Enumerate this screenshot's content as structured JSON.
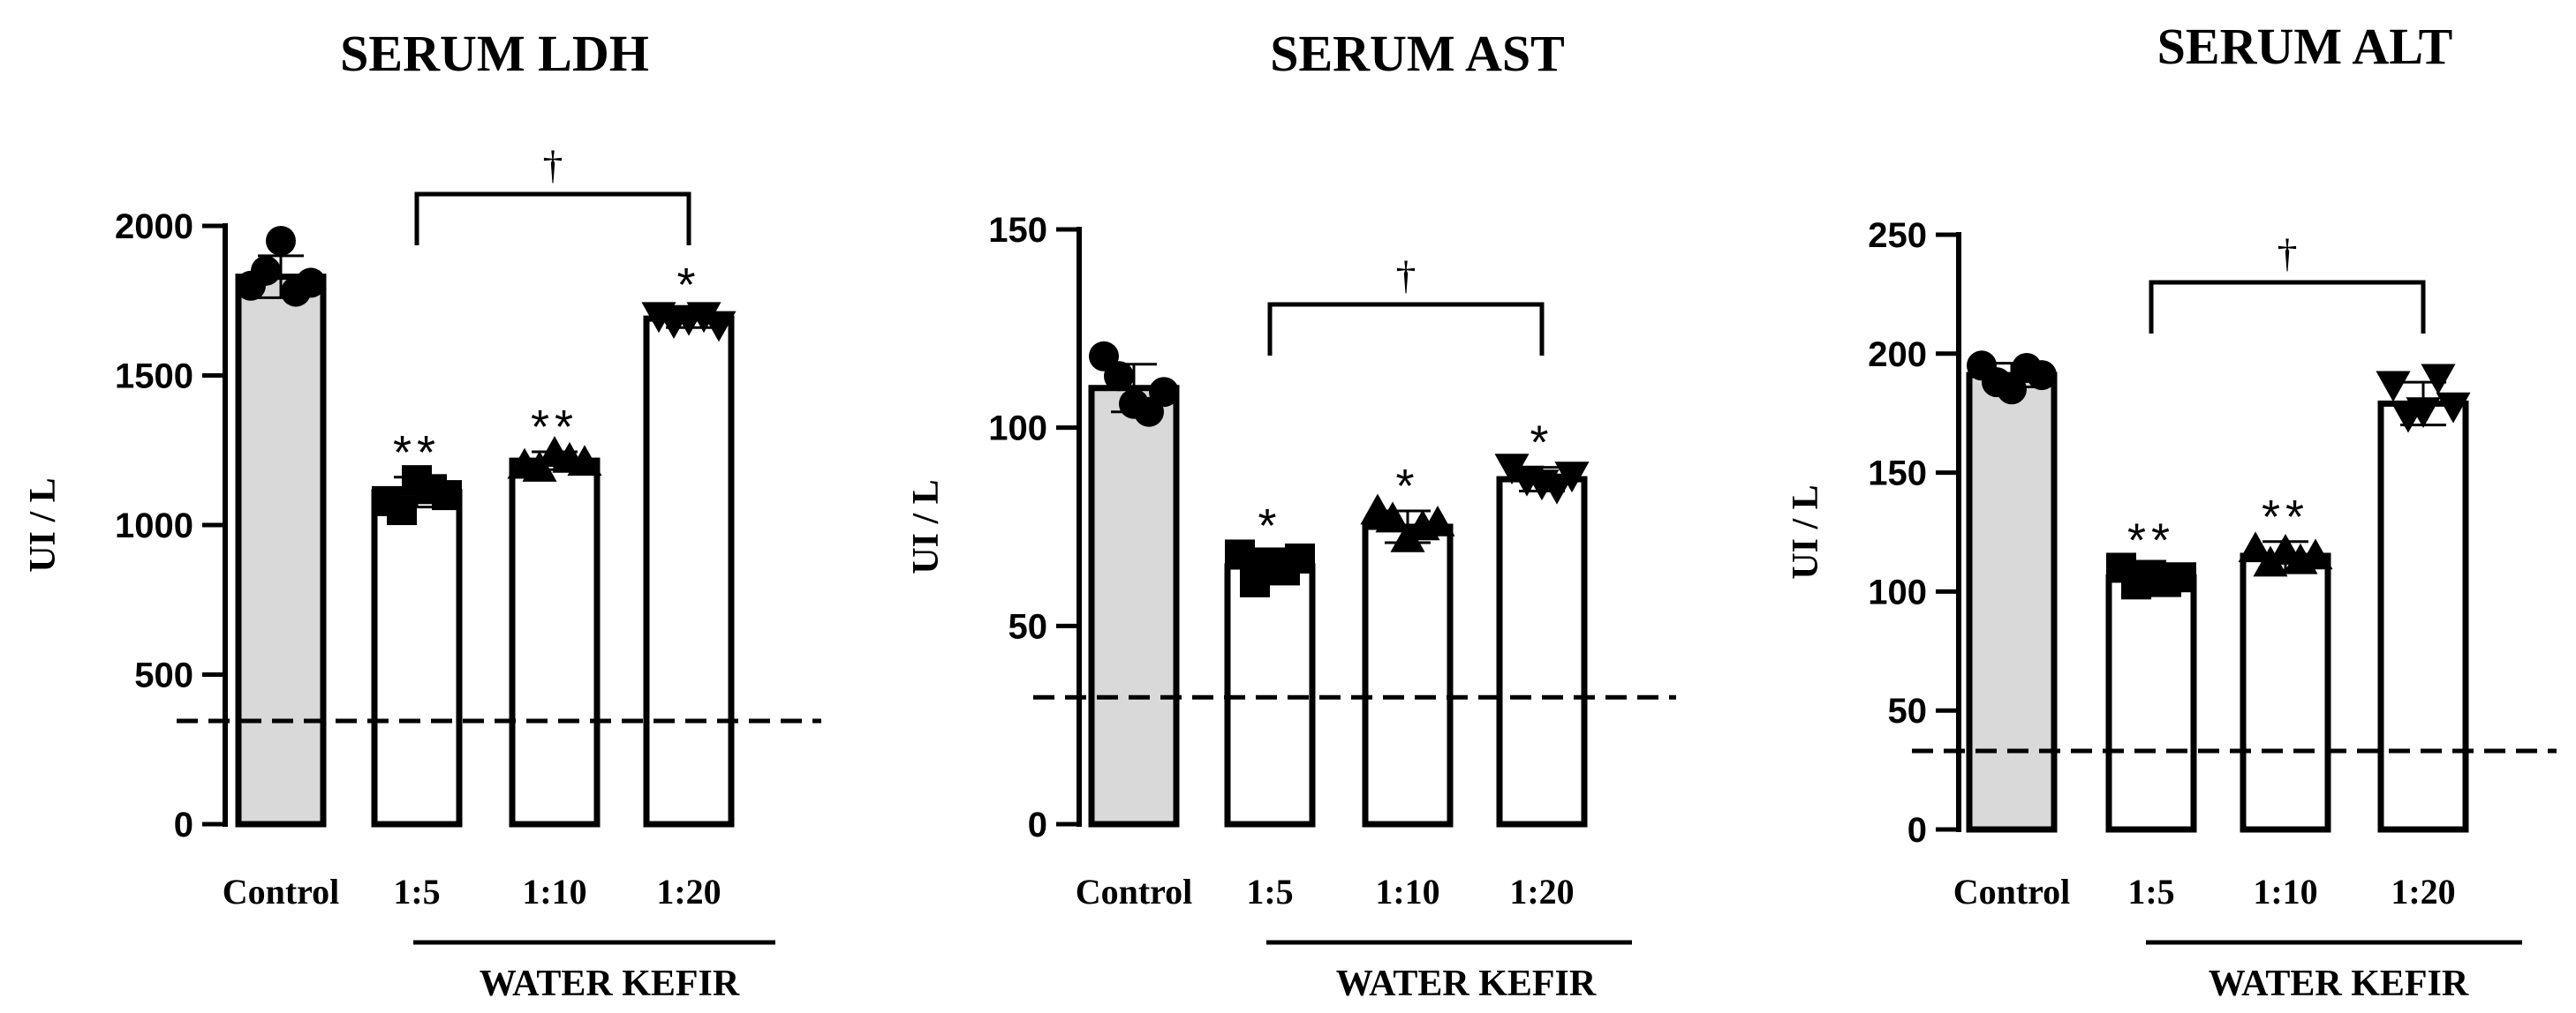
{
  "chart_data": [
    {
      "type": "bar",
      "title": "SERUM LDH",
      "ylabel": "UI / L",
      "xlabel": "",
      "ylim": [
        0,
        2000
      ],
      "yticks": [
        0,
        500,
        1000,
        1500,
        2000
      ],
      "categories": [
        "Control",
        "1:5",
        "1:10",
        "1:20"
      ],
      "group_label": "WATER KEFIR",
      "values": [
        1830,
        1110,
        1215,
        1690
      ],
      "errors": [
        70,
        50,
        30,
        30
      ],
      "points": [
        [
          1800,
          1850,
          1950,
          1780,
          1810
        ],
        [
          1080,
          1050,
          1150,
          1120,
          1100
        ],
        [
          1200,
          1190,
          1240,
          1220,
          1210
        ],
        [
          1700,
          1680,
          1690,
          1700,
          1670
        ]
      ],
      "markers": [
        "circle",
        "square",
        "triangle-up",
        "triangle-down"
      ],
      "significance": [
        "",
        "**",
        "**",
        "*"
      ],
      "reference_line": 345,
      "bracket": {
        "from": 1,
        "to": 3,
        "label": "†"
      }
    },
    {
      "type": "bar",
      "title": "SERUM AST",
      "ylabel": "UI / L",
      "xlabel": "",
      "ylim": [
        0,
        150
      ],
      "yticks": [
        0,
        50,
        100,
        150
      ],
      "categories": [
        "Control",
        "1:5",
        "1:10",
        "1:20"
      ],
      "group_label": "WATER KEFIR",
      "values": [
        110,
        65,
        75,
        87
      ],
      "errors": [
        6,
        4,
        4,
        3
      ],
      "points": [
        [
          118,
          113,
          106,
          104,
          109
        ],
        [
          68,
          61,
          66,
          64,
          67
        ],
        [
          79,
          77,
          72,
          75,
          76
        ],
        [
          90,
          87,
          86,
          85,
          88
        ]
      ],
      "markers": [
        "circle",
        "square",
        "triangle-up",
        "triangle-down"
      ],
      "significance": [
        "",
        "*",
        "*",
        "*"
      ],
      "reference_line": 32,
      "bracket": {
        "from": 1,
        "to": 3,
        "label": "†"
      }
    },
    {
      "type": "bar",
      "title": "SERUM ALT",
      "ylabel": "UI / L",
      "xlabel": "",
      "ylim": [
        0,
        250
      ],
      "yticks": [
        0,
        50,
        100,
        150,
        200,
        250
      ],
      "categories": [
        "Control",
        "1:5",
        "1:10",
        "1:20"
      ],
      "group_label": "WATER KEFIR",
      "values": [
        191,
        106,
        115,
        179
      ],
      "errors": [
        5,
        5,
        6,
        9
      ],
      "points": [
        [
          195,
          188,
          185,
          194,
          191
        ],
        [
          110,
          103,
          107,
          104,
          106
        ],
        [
          118,
          112,
          117,
          113,
          115
        ],
        [
          187,
          174,
          176,
          190,
          178
        ]
      ],
      "markers": [
        "circle",
        "square",
        "triangle-up",
        "triangle-down"
      ],
      "significance": [
        "",
        "**",
        "**",
        ""
      ],
      "reference_line": 33,
      "bracket": {
        "from": 1,
        "to": 3,
        "label": "†"
      }
    }
  ]
}
